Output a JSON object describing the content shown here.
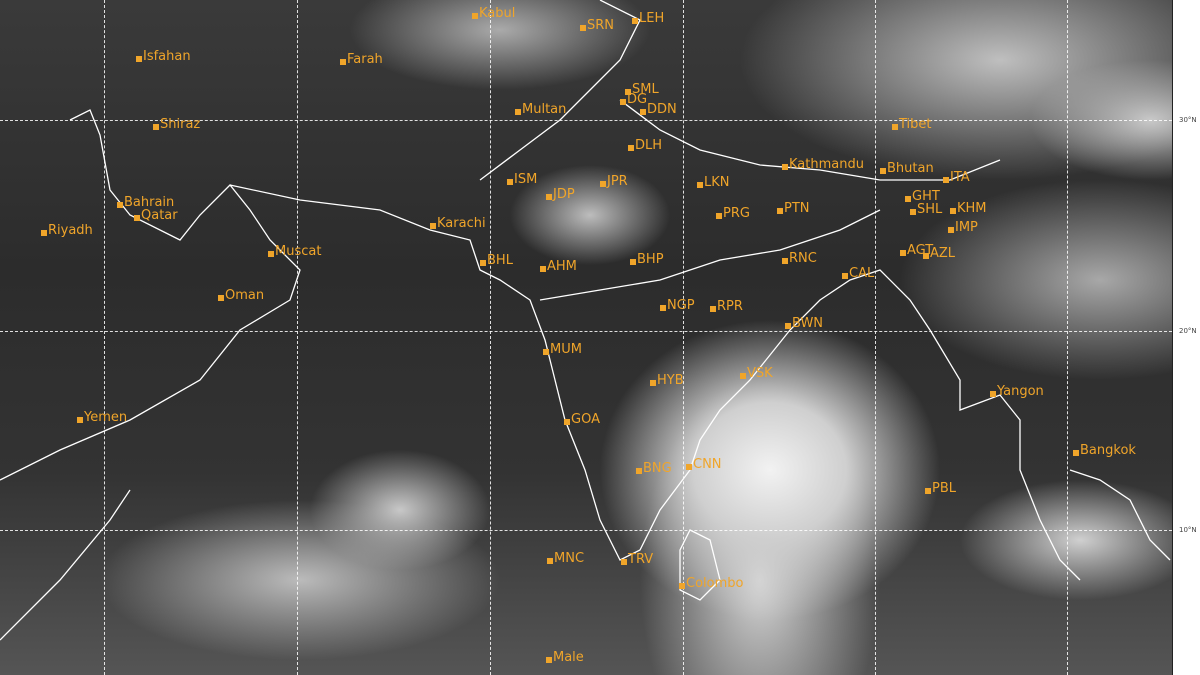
{
  "map": {
    "places": [
      "Kabul",
      "SRN",
      "LEH",
      "Isfahan",
      "Farah",
      "SML",
      "DG",
      "DDN",
      "Multan",
      "Shiraz",
      "Tibet",
      "DLH",
      "Kathmandu",
      "Bhutan",
      "ITA",
      "ISM",
      "JPR",
      "LKN",
      "JDP",
      "Bahrain",
      "Qatar",
      "GHT",
      "SHL",
      "KHM",
      "Riyadh",
      "Karachi",
      "PRG",
      "PTN",
      "IMP",
      "AGT",
      "AZL",
      "Muscat",
      "BHL",
      "AHM",
      "BHP",
      "RNC",
      "CAL",
      "Oman",
      "NGP",
      "RPR",
      "BWN",
      "MUM",
      "HYB",
      "VSK",
      "Yangon",
      "Yemen",
      "GOA",
      "BNG",
      "CNN",
      "Bangkok",
      "PBL",
      "MNC",
      "TRV",
      "Colombo",
      "Male"
    ],
    "latitude_labels": [
      "30°N",
      "20°N",
      "10°N"
    ],
    "label_color": "#f0a52a"
  }
}
